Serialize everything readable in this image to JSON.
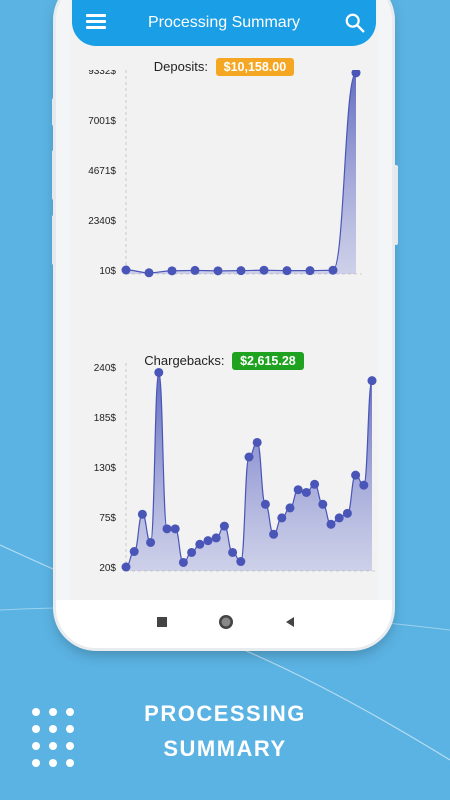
{
  "app": {
    "title": "Processing Summary"
  },
  "deposits": {
    "label": "Deposits:",
    "badge": "$10,158.00",
    "badge_color": "#f5a623",
    "chart_data": {
      "type": "area",
      "y_ticks": [
        "9332$",
        "7001$",
        "4671$",
        "2340$",
        "10$"
      ],
      "ylim": [
        10,
        9332
      ],
      "values": [
        10,
        -120,
        -30,
        -10,
        -30,
        -20,
        0,
        -20,
        -20,
        0,
        9200
      ]
    }
  },
  "chargebacks": {
    "label": "Chargebacks:",
    "badge": "$2,615.28",
    "badge_color": "#1fa21f",
    "chart_data": {
      "type": "area",
      "y_ticks": [
        "240$",
        "185$",
        "130$",
        "75$",
        "20$"
      ],
      "ylim": [
        20,
        240
      ],
      "values": [
        20,
        37,
        78,
        47,
        234,
        62,
        62,
        25,
        36,
        45,
        49,
        52,
        65,
        36,
        26,
        141,
        157,
        89,
        56,
        74,
        85,
        105,
        102,
        111,
        89,
        67,
        74,
        79,
        121,
        110,
        225
      ]
    }
  },
  "footer": {
    "line1": "PROCESSING",
    "line2": "SUMMARY"
  },
  "colors": {
    "background": "#5bb3e3",
    "appbar": "#1a9ee6",
    "series": "#4a55b8",
    "fill": "#8a92d6"
  },
  "icons": {
    "menu": "hamburger-icon",
    "search": "search-icon",
    "nav_back": "triangle-back-icon",
    "nav_home": "circle-home-icon",
    "nav_recent": "square-recent-icon"
  }
}
